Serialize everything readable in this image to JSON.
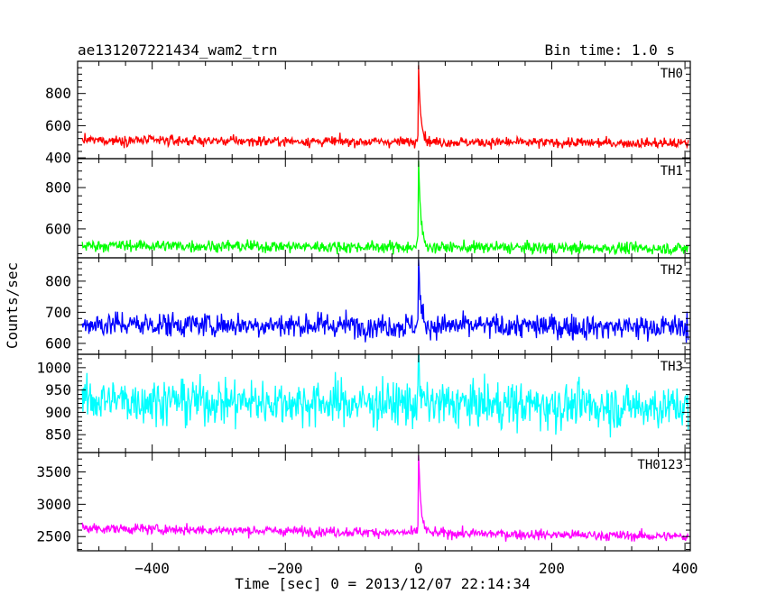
{
  "chart_data": {
    "type": "line",
    "title": "ae131207221434_wam2_trn",
    "subtitle": "Bin time: 1.0 s",
    "xlabel": "Time [sec] 0 = 2013/12/07 22:14:34",
    "ylabel": "Counts/sec",
    "xlim": [
      -512,
      408
    ],
    "x_ticks": [
      -400,
      -200,
      0,
      200,
      400
    ],
    "x_tick_labels": [
      "−400",
      "−200",
      "0",
      "200",
      "400"
    ],
    "bin_time_s": 1.0,
    "grid": false,
    "legend": "none",
    "panels": [
      {
        "label": "TH0",
        "color": "#ff0000",
        "ylim": [
          395,
          1000
        ],
        "y_ticks": [
          400,
          600,
          800
        ],
        "y_tick_labels": [
          "400",
          "600",
          "800"
        ],
        "baseline_start": 510,
        "baseline_end": 490,
        "noise": 22,
        "peak": 990,
        "peak_time": 0,
        "decay_s": 3.5,
        "min_value": 400
      },
      {
        "label": "TH1",
        "color": "#00ff00",
        "ylim": [
          460,
          940
        ],
        "y_ticks": [
          600,
          800
        ],
        "y_tick_labels": [
          "600",
          "800"
        ],
        "baseline_start": 520,
        "baseline_end": 505,
        "noise": 20,
        "peak": 925,
        "peak_time": 0,
        "decay_s": 3.5,
        "min_value": 475
      },
      {
        "label": "TH2",
        "color": "#0000ff",
        "ylim": [
          565,
          875
        ],
        "y_ticks": [
          600,
          700,
          800
        ],
        "y_tick_labels": [
          "600",
          "700",
          "800"
        ],
        "baseline_start": 662,
        "baseline_end": 652,
        "noise": 28,
        "peak": 870,
        "peak_time": 0,
        "decay_s": 3.0,
        "min_value": 575
      },
      {
        "label": "TH3",
        "color": "#00ffff",
        "ylim": [
          810,
          1030
        ],
        "y_ticks": [
          850,
          900,
          950,
          1000
        ],
        "y_tick_labels": [
          "850",
          "900",
          "950",
          "1000"
        ],
        "baseline_start": 928,
        "baseline_end": 912,
        "noise": 36,
        "peak": 1030,
        "peak_time": 0,
        "decay_s": 2.0,
        "min_value": 820
      },
      {
        "label": "TH0123",
        "color": "#ff00ff",
        "ylim": [
          2280,
          3800
        ],
        "y_ticks": [
          2500,
          3000,
          3500
        ],
        "y_tick_labels": [
          "2500",
          "3000",
          "3500"
        ],
        "baseline_start": 2630,
        "baseline_end": 2500,
        "noise": 55,
        "peak": 3780,
        "peak_time": 0,
        "decay_s": 3.5,
        "min_value": 2330
      }
    ]
  }
}
